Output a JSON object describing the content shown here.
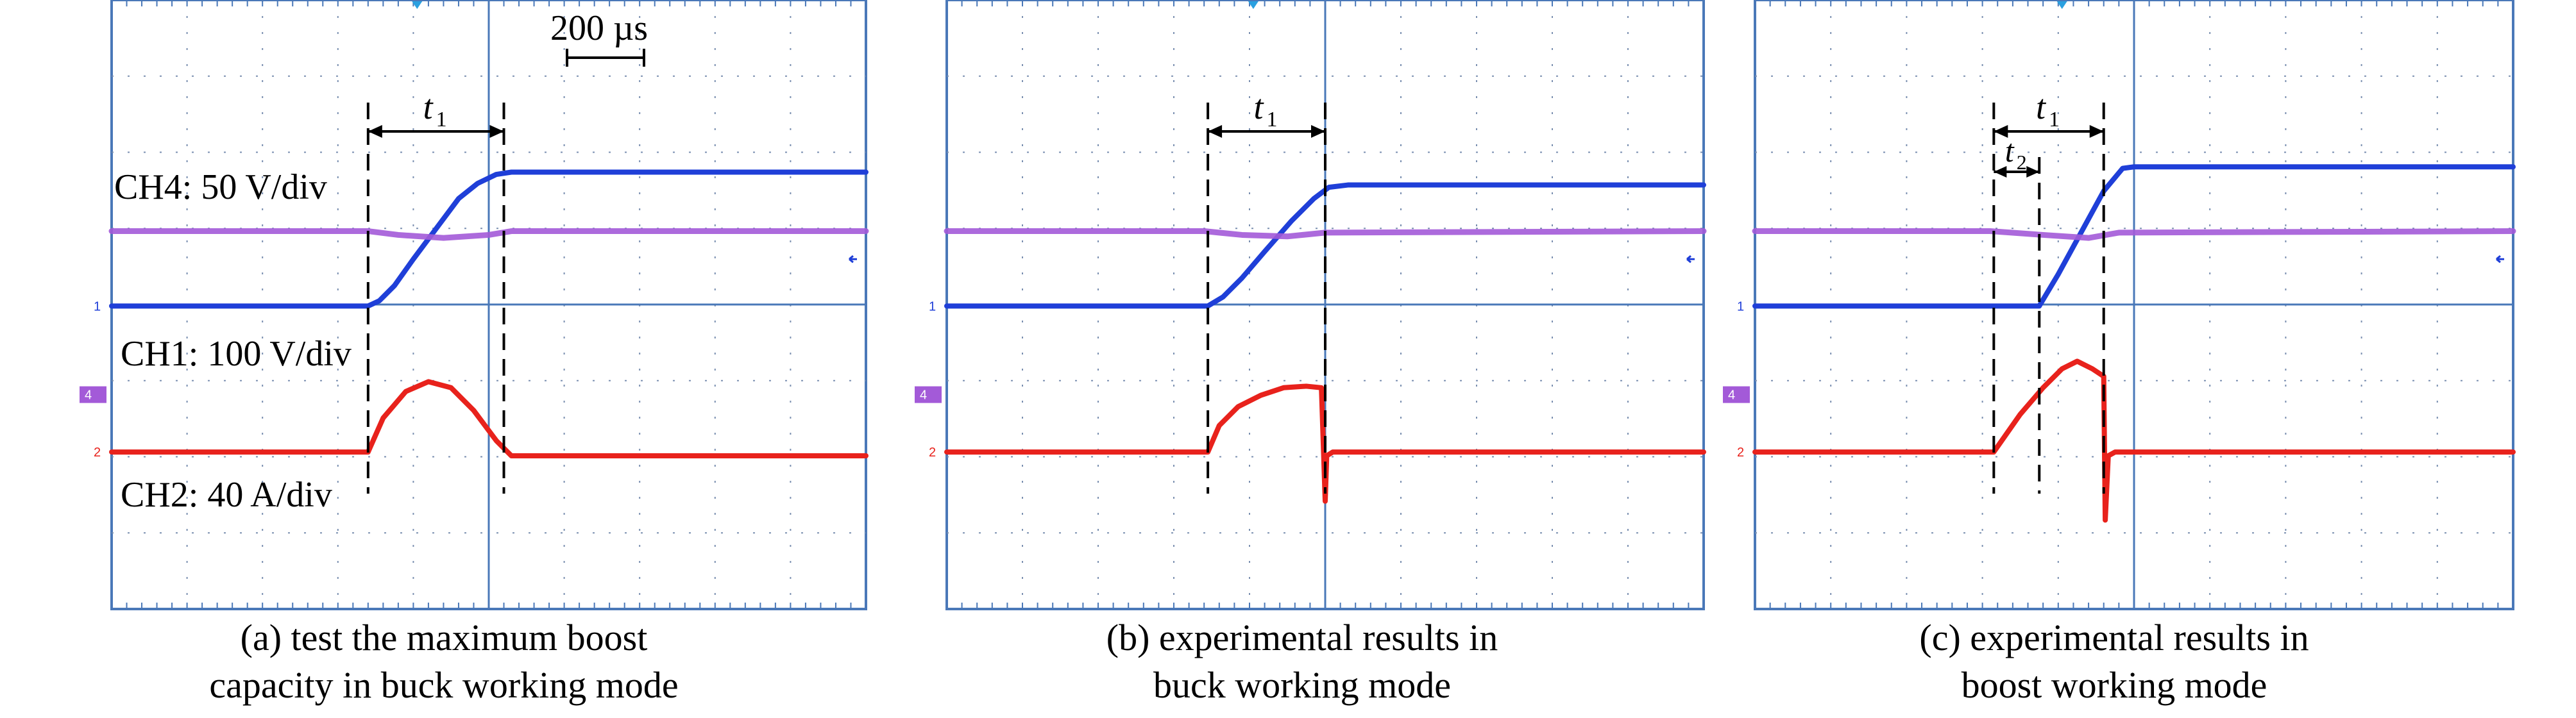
{
  "figure": {
    "time_scale_label": "200 µs",
    "colors": {
      "ch4": "#1f3fd8",
      "ch1": "#a35ad8",
      "ch2": "#e8221c",
      "grid": "#4a78b8",
      "dots": "#7a8fb0"
    },
    "panels": [
      {
        "id": "a",
        "caption_line1": "(a) test the maximum boost",
        "caption_line2": "capacity in buck working mode",
        "labels": {
          "ch4": "CH4: 50 V/div",
          "ch1": "CH1: 100 V/div",
          "ch2": "CH2: 40 A/div",
          "t1": "t",
          "t1_sub": "1"
        }
      },
      {
        "id": "b",
        "caption_line1": "(b) experimental results in",
        "caption_line2": "buck working mode",
        "labels": {
          "t1": "t",
          "t1_sub": "1"
        }
      },
      {
        "id": "c",
        "caption_line1": "(c) experimental results in",
        "caption_line2": "boost working mode",
        "labels": {
          "t1": "t",
          "t1_sub": "1",
          "t2": "t",
          "t2_sub": "2"
        }
      }
    ],
    "channel_markers": {
      "ch1": "1",
      "ch4": "4",
      "ch2": "2"
    }
  },
  "chart_data": [
    {
      "type": "line",
      "panel": "a",
      "x_unit": "div",
      "xlim": [
        0,
        10
      ],
      "ylim": [
        -4,
        4
      ],
      "time_per_div": "200 µs",
      "series": [
        {
          "name": "CH4: 50 V/div",
          "x": [
            0,
            3.4,
            3.55,
            3.75,
            4.0,
            4.3,
            4.6,
            4.85,
            5.1,
            5.3,
            10
          ],
          "y": [
            -0.02,
            -0.02,
            0.05,
            0.25,
            0.6,
            1.0,
            1.4,
            1.6,
            1.72,
            1.75,
            1.75
          ]
        },
        {
          "name": "CH1: 100 V/div",
          "x": [
            0,
            3.4,
            3.8,
            4.4,
            5.0,
            5.3,
            10
          ],
          "y": [
            0.97,
            0.97,
            0.92,
            0.88,
            0.92,
            0.97,
            0.97
          ]
        },
        {
          "name": "CH2: 40 A/div",
          "x": [
            0,
            3.4,
            3.6,
            3.9,
            4.2,
            4.5,
            4.8,
            5.1,
            5.3,
            10
          ],
          "y": [
            -1.95,
            -1.95,
            -1.5,
            -1.15,
            -1.02,
            -1.1,
            -1.4,
            -1.8,
            -2.0,
            -2.0
          ]
        }
      ],
      "markers": {
        "t1": [
          3.4,
          5.2
        ]
      }
    },
    {
      "type": "line",
      "panel": "b",
      "x_unit": "div",
      "xlim": [
        0,
        10
      ],
      "ylim": [
        -4,
        4
      ],
      "series": [
        {
          "name": "CH4",
          "x": [
            0,
            3.45,
            3.65,
            3.9,
            4.2,
            4.55,
            4.85,
            5.05,
            5.3,
            10
          ],
          "y": [
            -0.02,
            -0.02,
            0.1,
            0.35,
            0.7,
            1.1,
            1.4,
            1.55,
            1.58,
            1.58
          ]
        },
        {
          "name": "CH1",
          "x": [
            0,
            3.4,
            3.9,
            4.5,
            5.0,
            10
          ],
          "y": [
            0.97,
            0.97,
            0.92,
            0.9,
            0.95,
            0.97
          ]
        },
        {
          "name": "CH2",
          "x": [
            0,
            3.45,
            3.6,
            3.85,
            4.15,
            4.45,
            4.75,
            4.95,
            5.0,
            5.02,
            5.1,
            10
          ],
          "y": [
            -1.95,
            -1.95,
            -1.6,
            -1.35,
            -1.2,
            -1.1,
            -1.08,
            -1.1,
            -2.6,
            -2.0,
            -1.95,
            -1.95
          ]
        }
      ],
      "markers": {
        "t1": [
          3.45,
          5.0
        ]
      }
    },
    {
      "type": "line",
      "panel": "c",
      "x_unit": "div",
      "xlim": [
        0,
        10
      ],
      "ylim": [
        -4,
        4
      ],
      "series": [
        {
          "name": "CH4",
          "x": [
            0,
            3.75,
            4.0,
            4.3,
            4.6,
            4.85,
            5.0,
            10
          ],
          "y": [
            -0.02,
            -0.02,
            0.4,
            0.95,
            1.5,
            1.8,
            1.82,
            1.82
          ]
        },
        {
          "name": "CH1",
          "x": [
            0,
            3.1,
            3.8,
            4.4,
            4.8,
            10
          ],
          "y": [
            0.97,
            0.97,
            0.92,
            0.88,
            0.95,
            0.97
          ]
        },
        {
          "name": "CH2",
          "x": [
            0,
            3.15,
            3.5,
            3.8,
            4.05,
            4.25,
            4.45,
            4.6,
            4.62,
            4.66,
            4.75,
            10
          ],
          "y": [
            -1.95,
            -1.95,
            -1.45,
            -1.1,
            -0.85,
            -0.75,
            -0.85,
            -0.95,
            -2.85,
            -2.0,
            -1.95,
            -1.95
          ]
        }
      ],
      "markers": {
        "t1": [
          3.15,
          4.6
        ],
        "t2": [
          3.15,
          3.75
        ]
      }
    }
  ]
}
